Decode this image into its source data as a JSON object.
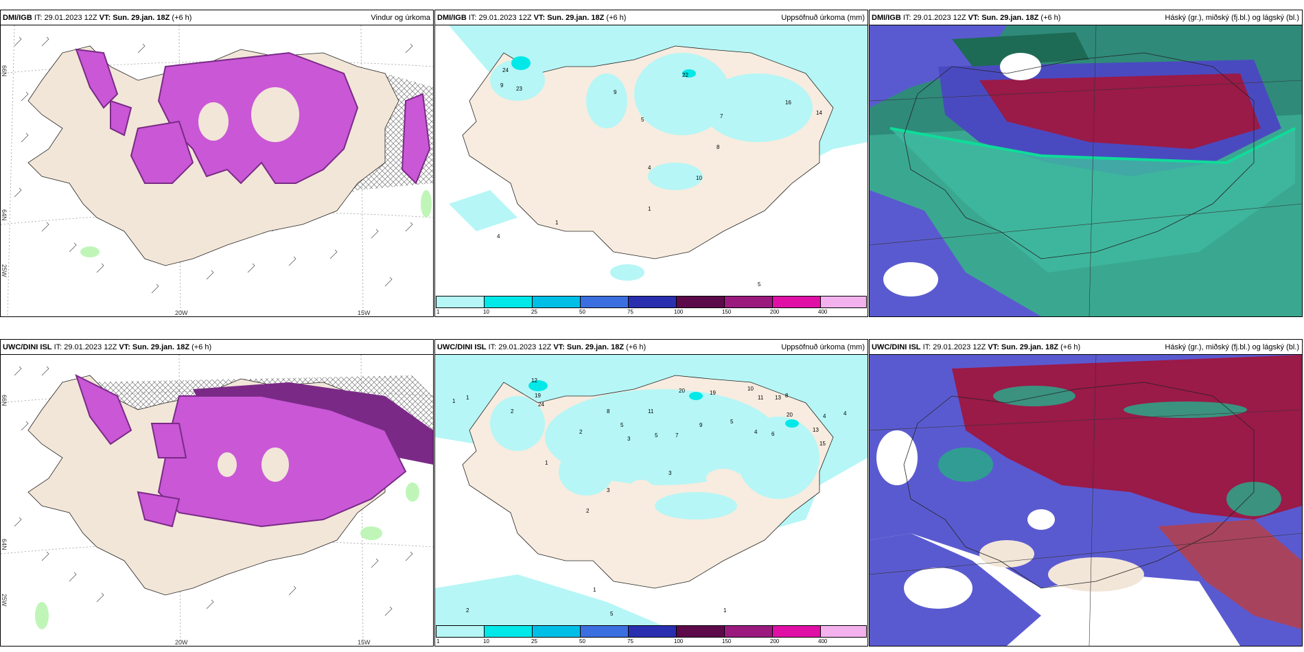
{
  "panels": [
    {
      "id": "p1",
      "model": "DMI/IGB",
      "it": "IT: 29.01.2023 12Z",
      "vt": "VT: Sun. 29.jan. 18Z",
      "lead": "(+6 h)",
      "title": "Vindur og úrkoma",
      "type": "wind"
    },
    {
      "id": "p2",
      "model": "DMI/IGB",
      "it": "IT: 29.01.2023 12Z",
      "vt": "VT: Sun. 29.jan. 18Z",
      "lead": "(+6 h)",
      "title": "Uppsöfnuð úrkoma (mm)",
      "type": "accum"
    },
    {
      "id": "p3",
      "model": "DMI/IGB",
      "it": "IT: 29.01.2023 12Z",
      "vt": "VT: Sun. 29.jan. 18Z",
      "lead": "(+6 h)",
      "title": "Háský (gr.), miðský (fj.bl.) og lágský (bl.)",
      "type": "cloud"
    },
    {
      "id": "p4",
      "model": "UWC/DINI ISL",
      "it": "IT: 29.01.2023 12Z",
      "vt": "VT: Sun. 29.jan. 18Z",
      "lead": "(+6 h)",
      "title": "",
      "type": "wind"
    },
    {
      "id": "p5",
      "model": "UWC/DINI ISL",
      "it": "IT: 29.01.2023 12Z",
      "vt": "VT: Sun. 29.jan. 18Z",
      "lead": "(+6 h)",
      "title": "Uppsöfnuð úrkoma (mm)",
      "type": "accum"
    },
    {
      "id": "p6",
      "model": "UWC/DINI ISL",
      "it": "IT: 29.01.2023 12Z",
      "vt": "VT: Sun. 29.jan. 18Z",
      "lead": "(+6 h)",
      "title": "Háský (gr.), miðský (fj.bl.) og lágský (bl.)",
      "type": "cloud"
    }
  ],
  "axes": {
    "lat66": "66N",
    "lat64": "64N",
    "lat_low": "25W",
    "lon20": "20W",
    "lon15": "15W"
  },
  "colorbar": {
    "labels": [
      "1",
      "10",
      "25",
      "50",
      "75",
      "100",
      "150",
      "200",
      "400"
    ],
    "colors": [
      "#b6f6f6",
      "#00e8e8",
      "#00bfe6",
      "#3b6fe0",
      "#2a2fb0",
      "#5c0a4a",
      "#9a1a7e",
      "#e010a6",
      "#f3b2ee"
    ]
  },
  "accum_values_top": [
    "9",
    "24",
    "23",
    "9",
    "5",
    "22",
    "7",
    "16",
    "14",
    "8",
    "4",
    "10",
    "1",
    "1",
    "4",
    "5"
  ],
  "accum_values_bottom": [
    "1",
    "1",
    "12",
    "24",
    "19",
    "2",
    "8",
    "5",
    "11",
    "20",
    "19",
    "10",
    "11",
    "13",
    "8",
    "20",
    "4",
    "4",
    "13",
    "15",
    "3",
    "5",
    "7",
    "9",
    "5",
    "4",
    "6",
    "2",
    "1",
    "2",
    "1",
    "3",
    "5",
    "3",
    "1",
    "2"
  ],
  "colors": {
    "land": "#f2e6d8",
    "precip_magenta": "#c957d6",
    "precip_dark": "#7a2a86",
    "accum_light": "#b6f6f6",
    "cloud_blue": "#5a5ad0",
    "cloud_red": "#9a1a48",
    "cloud_green": "#2aa88a"
  }
}
